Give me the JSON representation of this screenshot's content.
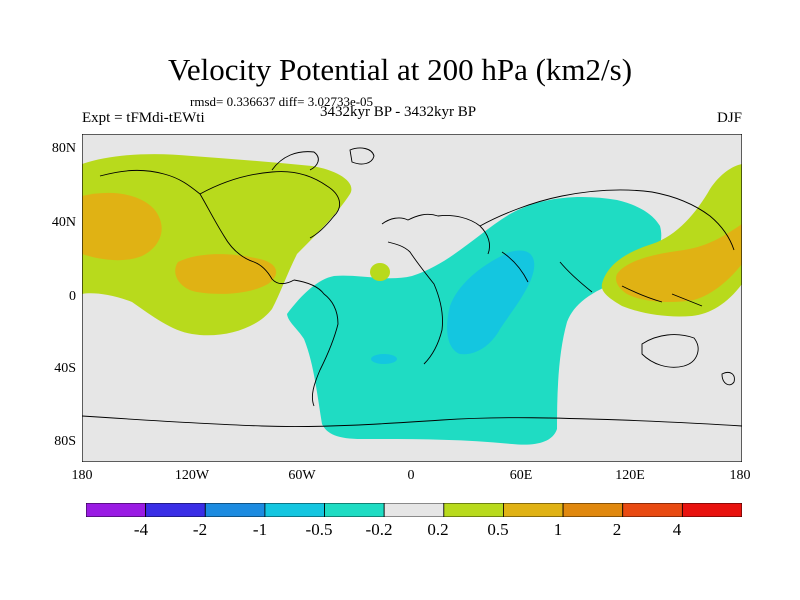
{
  "title": "Velocity Potential at 200 hPa (km2/s)",
  "stats_line": "rmsd= 0.336637 diff= 3.02733e-05",
  "experiment": "Expt = tFMdi-tEWti",
  "period": "3432kyr BP - 3432kyr BP",
  "season": "DJF",
  "lat_ticks": [
    "80N",
    "40N",
    "0",
    "40S",
    "80S"
  ],
  "lon_ticks": [
    "180",
    "120W",
    "60W",
    "0",
    "60E",
    "120E",
    "180"
  ],
  "colorbar": {
    "labels": [
      "-4",
      "-2",
      "-1",
      "-0.5",
      "-0.2",
      "0.2",
      "0.5",
      "1",
      "2",
      "4"
    ],
    "colors": [
      "#9a1be3",
      "#3a2ee6",
      "#1c8be0",
      "#14c6e0",
      "#1fdcc3",
      "#e6e6e6",
      "#b8da1c",
      "#e0b214",
      "#e0880e",
      "#e84a12",
      "#e8120e"
    ]
  },
  "map_colors": {
    "background": "#e6e6e6",
    "pos_weak": "#b8da1c",
    "pos_mid": "#e0b214",
    "neg_weak": "#1fdcc3",
    "neg_mid": "#14c6e0",
    "coast": "#000000"
  }
}
